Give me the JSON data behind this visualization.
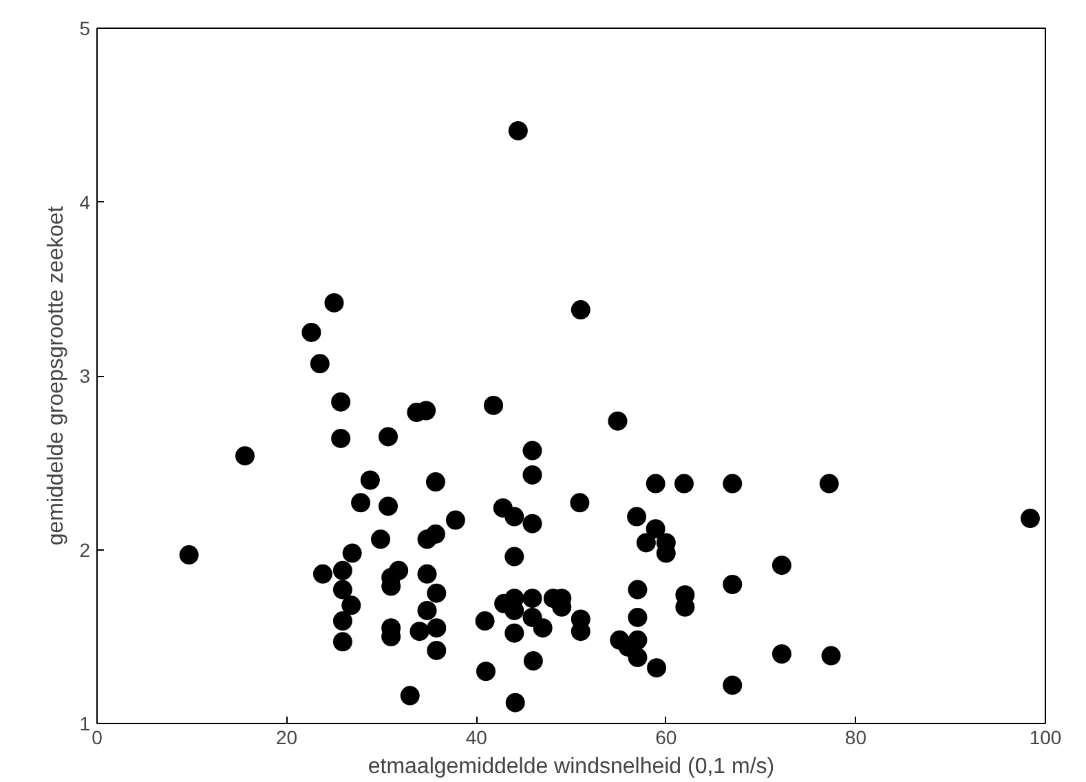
{
  "chart_data": {
    "type": "scatter",
    "xlabel": "etmaalgemiddelde windsnelheid (0,1 m/s)",
    "ylabel": "gemiddelde groepsgrootte zeekoet",
    "x": [
      9.7,
      15.6,
      22.6,
      25,
      23.5,
      25.7,
      25.7,
      23.8,
      25.9,
      25.9,
      26.9,
      26.8,
      25.9,
      25.9,
      27.8,
      28.8,
      29.9,
      30.7,
      30.7,
      31.8,
      31,
      31,
      31,
      31,
      33,
      33.7,
      34.7,
      35.7,
      34.8,
      35.7,
      34.8,
      35.8,
      34.8,
      35.8,
      35.8,
      34,
      37.8,
      41.8,
      40.9,
      41,
      42.8,
      44,
      44.4,
      44,
      42.9,
      44,
      44,
      44,
      44.1,
      45.9,
      45.9,
      45.9,
      45.9,
      45.9,
      47,
      46,
      48.1,
      49,
      49,
      51,
      51,
      50.9,
      54.9,
      51,
      55.1,
      56,
      56.9,
      57.9,
      58.9,
      60,
      60,
      58.9,
      61.9,
      57,
      57,
      57,
      57,
      59,
      62,
      62,
      67,
      67,
      67,
      72.2,
      72.2,
      77.2,
      77.4,
      98.4
    ],
    "values": [
      1.97,
      2.54,
      3.25,
      3.42,
      3.07,
      2.85,
      2.64,
      1.86,
      1.88,
      1.77,
      1.98,
      1.68,
      1.59,
      1.47,
      2.27,
      2.4,
      2.06,
      2.65,
      2.25,
      1.88,
      1.84,
      1.79,
      1.55,
      1.5,
      1.16,
      2.79,
      2.8,
      2.39,
      2.06,
      2.09,
      1.86,
      1.75,
      1.65,
      1.55,
      1.42,
      1.53,
      2.17,
      2.83,
      1.59,
      1.3,
      2.24,
      2.19,
      4.41,
      1.96,
      1.69,
      1.72,
      1.65,
      1.52,
      1.12,
      2.57,
      2.43,
      2.15,
      1.72,
      1.61,
      1.55,
      1.36,
      1.72,
      1.72,
      1.67,
      1.6,
      1.53,
      2.27,
      2.74,
      3.38,
      1.48,
      1.44,
      2.19,
      2.04,
      2.12,
      2.04,
      1.98,
      2.38,
      2.38,
      1.77,
      1.61,
      1.48,
      1.38,
      1.32,
      1.74,
      1.67,
      2.38,
      1.8,
      1.22,
      1.91,
      1.4,
      2.38,
      1.39,
      2.18
    ],
    "color": "#000000",
    "marker": "circle",
    "grid": false,
    "xlim": [
      0,
      100
    ],
    "ylim": [
      1,
      5
    ],
    "xticks": [
      0,
      20,
      40,
      60,
      80,
      100
    ],
    "yticks": [
      1,
      2,
      3,
      4,
      5
    ]
  }
}
